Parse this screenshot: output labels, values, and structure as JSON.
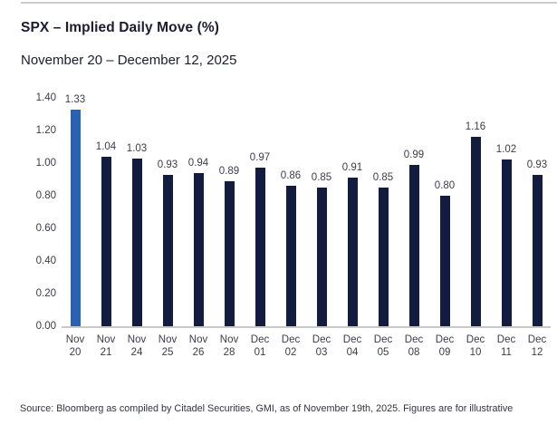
{
  "header": {
    "title": "SPX – Implied Daily Move (%)",
    "subtitle": "November 20 – December 12, 2025"
  },
  "chart_data": {
    "type": "bar",
    "title": "SPX – Implied Daily Move (%)",
    "subtitle": "November 20 – December 12, 2025",
    "categories": [
      "Nov 20",
      "Nov 21",
      "Nov 24",
      "Nov 25",
      "Nov 26",
      "Nov 28",
      "Dec 01",
      "Dec 02",
      "Dec 03",
      "Dec 04",
      "Dec 05",
      "Dec 08",
      "Dec 09",
      "Dec 10",
      "Dec 11",
      "Dec 12"
    ],
    "values": [
      1.33,
      1.04,
      1.03,
      0.93,
      0.94,
      0.89,
      0.97,
      0.86,
      0.85,
      0.91,
      0.85,
      0.99,
      0.8,
      1.16,
      1.02,
      0.93
    ],
    "value_labels": [
      "1.33",
      "1.04",
      "1.03",
      "0.93",
      "0.94",
      "0.89",
      "0.97",
      "0.86",
      "0.85",
      "0.91",
      "0.85",
      "0.99",
      "0.80",
      "1.16",
      "1.02",
      "0.93"
    ],
    "xlabel": "",
    "ylabel": "",
    "ylim": [
      0.0,
      1.4
    ],
    "yticks": [
      "0.00",
      "0.20",
      "0.40",
      "0.60",
      "0.80",
      "1.00",
      "1.20",
      "1.40"
    ],
    "grid": false,
    "legend": false,
    "data_labels": true,
    "highlight_index": 0,
    "colors": {
      "highlight_bar": "#2a62b2",
      "bar": "#121c3e",
      "axis_line": "#c9c9c9",
      "label_text": "#3c3c4a",
      "title_text": "#1c1c30"
    }
  },
  "footer": {
    "source": "Source: Bloomberg as compiled by Citadel Securities, GMI, as of November 19th, 2025. Figures are for illustrative"
  }
}
